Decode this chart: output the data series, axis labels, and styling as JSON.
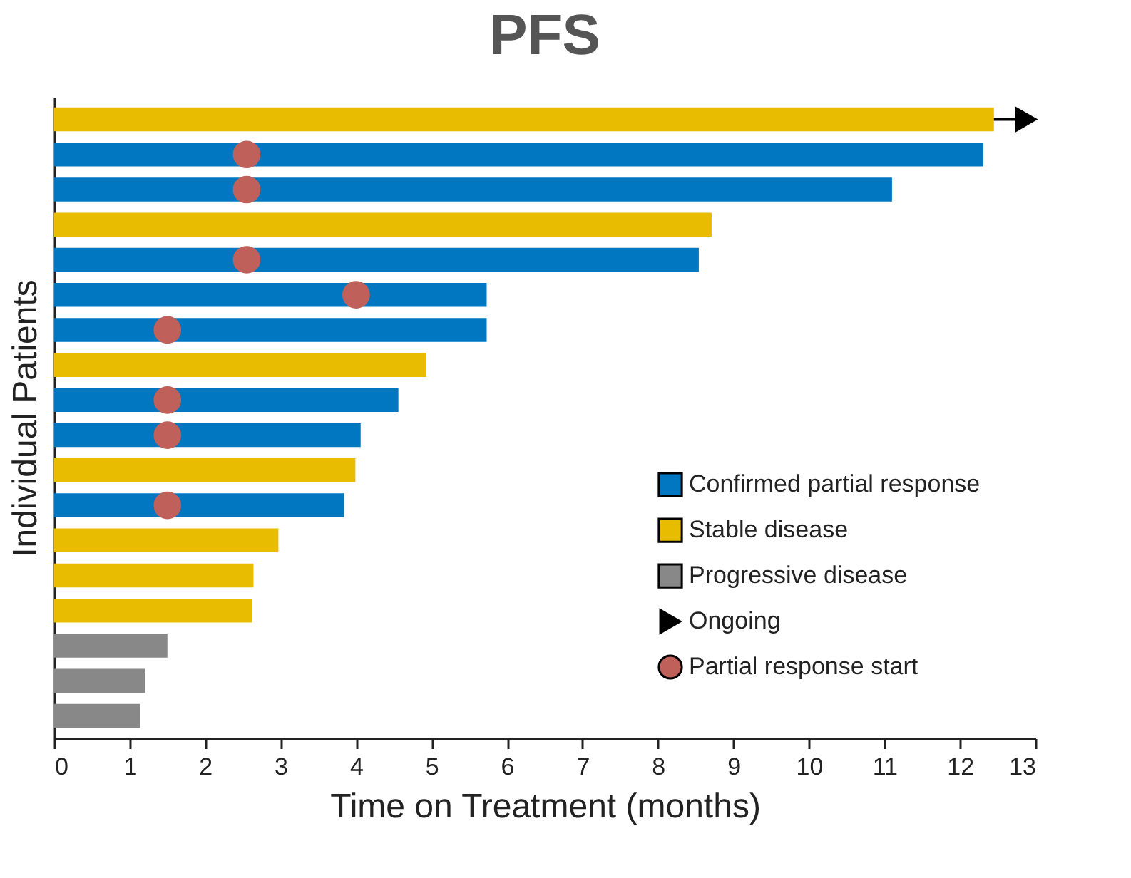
{
  "chart_data": {
    "type": "bar",
    "orientation": "horizontal",
    "stacked": true,
    "title": "PFS",
    "xlabel": "Time on Treatment (months)",
    "ylabel": "Individual Patients",
    "categories": [
      null,
      null,
      null,
      null,
      null,
      null,
      null,
      null,
      null,
      null,
      null,
      null,
      null,
      null,
      null,
      null,
      null,
      null
    ],
    "series": [
      {
        "name": "Confirmed partial response",
        "color": "#0077c0",
        "values": [
          null,
          12.31,
          11.1,
          null,
          8.54,
          5.73,
          5.73,
          null,
          4.56,
          4.06,
          null,
          3.84,
          null,
          null,
          null,
          null,
          null,
          null
        ]
      },
      {
        "name": "Stable disease",
        "color": "#e8bc00",
        "values": [
          12.45,
          null,
          null,
          8.71,
          null,
          null,
          null,
          4.93,
          null,
          null,
          3.99,
          null,
          2.97,
          2.64,
          2.62,
          null,
          null,
          null
        ]
      },
      {
        "name": "Progressive disease",
        "color": "#888888",
        "values": [
          null,
          null,
          null,
          null,
          null,
          null,
          null,
          null,
          null,
          null,
          null,
          null,
          null,
          null,
          null,
          1.5,
          1.2,
          1.14
        ]
      },
      {
        "name": "Ongoing",
        "type": "scatter",
        "marker": "triangle",
        "color": "#000000",
        "values": [
          12.87,
          null,
          null,
          null,
          null,
          null,
          null,
          null,
          null,
          null,
          null,
          null,
          null,
          null,
          null,
          null,
          null,
          null
        ]
      },
      {
        "name": "Partial response start",
        "type": "scatter",
        "marker": "circle",
        "color": "#c0605a",
        "values": [
          null,
          2.55,
          2.55,
          null,
          2.55,
          4.0,
          1.5,
          null,
          1.5,
          1.5,
          null,
          1.5,
          null,
          null,
          null,
          null,
          null,
          null
        ]
      }
    ],
    "xlim": [
      0,
      13
    ],
    "xticks": [
      0,
      1,
      2,
      3,
      4,
      5,
      6,
      7,
      8,
      9,
      10,
      11,
      12,
      13
    ],
    "tick_labels": "x",
    "legend": "right"
  }
}
